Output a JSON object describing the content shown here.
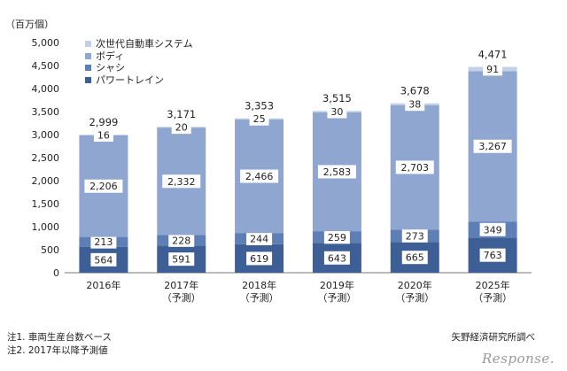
{
  "chart_data": {
    "type": "bar",
    "stacked": true,
    "unit_label": "（百万個）",
    "categories": [
      [
        "2016年"
      ],
      [
        "2017年",
        "（予測）"
      ],
      [
        "2018年",
        "（予測）"
      ],
      [
        "2019年",
        "（予測）"
      ],
      [
        "2020年",
        "（予測）"
      ],
      [
        "2025年",
        "（予測）"
      ]
    ],
    "series": [
      {
        "name": "パワートレイン",
        "color": "#3d5f96",
        "values": [
          564,
          591,
          619,
          643,
          665,
          763
        ],
        "labels": [
          "564",
          "591",
          "619",
          "643",
          "665",
          "763"
        ]
      },
      {
        "name": "シャシ",
        "color": "#5e7fb6",
        "values": [
          213,
          228,
          244,
          259,
          273,
          349
        ],
        "labels": [
          "213",
          "228",
          "244",
          "259",
          "273",
          "349"
        ]
      },
      {
        "name": "ボディ",
        "color": "#8fa6d0",
        "values": [
          2206,
          2332,
          2466,
          2583,
          2703,
          3267
        ],
        "labels": [
          "2,206",
          "2,332",
          "2,466",
          "2,583",
          "2,703",
          "3,267"
        ]
      },
      {
        "name": "次世代自動車システム",
        "color": "#c4d0e7",
        "values": [
          16,
          20,
          25,
          30,
          38,
          91
        ],
        "labels": [
          "16",
          "20",
          "25",
          "30",
          "38",
          "91"
        ]
      }
    ],
    "totals": [
      "2,999",
      "3,171",
      "3,353",
      "3,515",
      "3,678",
      "4,471"
    ],
    "ylim": [
      0,
      5000
    ],
    "yticks": [
      "0",
      "500",
      "1,000",
      "1,500",
      "2,000",
      "2,500",
      "3,000",
      "3,500",
      "4,000",
      "4,500",
      "5,000"
    ],
    "legend_position": "top-left"
  },
  "notes": {
    "note1": "注1. 車両生産台数ベース",
    "note2": "注2. 2017年以降予測値"
  },
  "source": "矢野経済研究所調べ",
  "watermark": "Response."
}
